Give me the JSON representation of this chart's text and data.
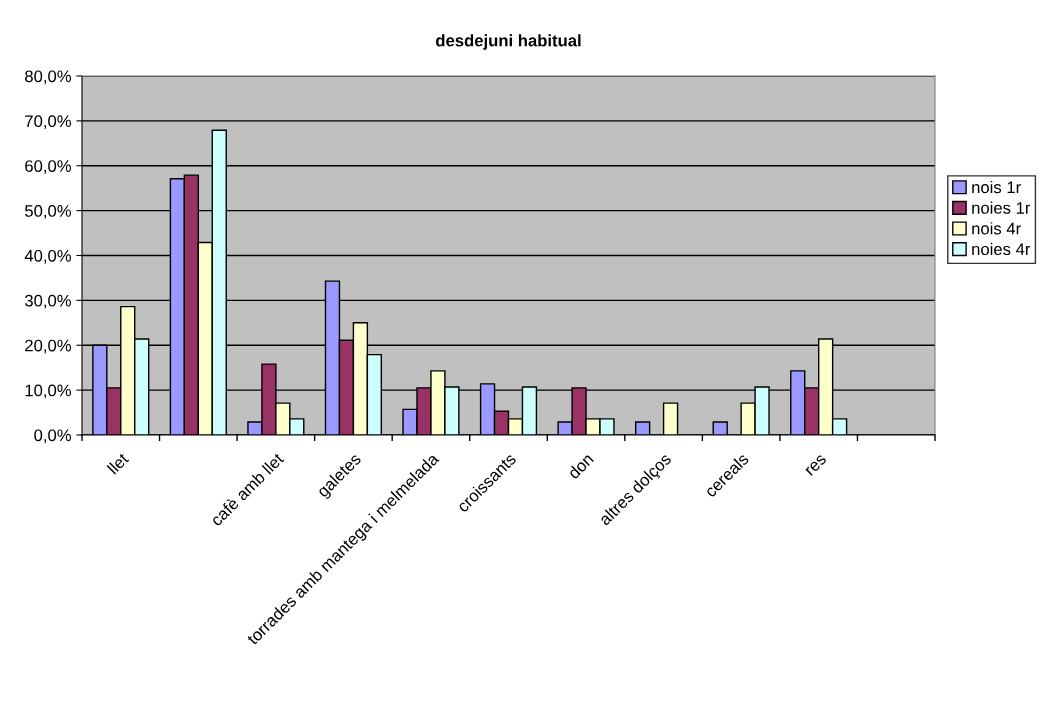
{
  "chart_data": {
    "type": "bar",
    "title": "desdejuni habitual",
    "categories": [
      "llet",
      null,
      "cafè amb llet",
      "galetes",
      "torrades amb mantega i melmelada",
      "croissants",
      "don",
      "altres dolços",
      "cereals",
      "res",
      null
    ],
    "series": [
      {
        "name": "nois 1r",
        "color": "#9999ff",
        "values": [
          20.0,
          57.1,
          2.9,
          34.3,
          5.7,
          11.4,
          2.9,
          2.9,
          2.9,
          14.3,
          null
        ]
      },
      {
        "name": "noies 1r",
        "color": "#993366",
        "values": [
          10.5,
          57.9,
          15.8,
          21.1,
          10.5,
          5.3,
          10.5,
          0,
          0,
          10.5,
          null
        ]
      },
      {
        "name": "nois 4r",
        "color": "#ffffcc",
        "values": [
          28.6,
          42.9,
          7.1,
          25.0,
          14.3,
          3.6,
          3.6,
          7.1,
          7.1,
          21.4,
          null
        ]
      },
      {
        "name": "noies 4r",
        "color": "#ccffff",
        "values": [
          21.4,
          67.9,
          3.6,
          17.9,
          10.7,
          10.7,
          3.6,
          0,
          10.7,
          3.6,
          null
        ]
      }
    ],
    "ylim": [
      0,
      80
    ],
    "yticks": [
      {
        "value": 0,
        "label": "0,0%"
      },
      {
        "value": 10,
        "label": "10,0%"
      },
      {
        "value": 20,
        "label": "20,0%"
      },
      {
        "value": 30,
        "label": "30,0%"
      },
      {
        "value": 40,
        "label": "40,0%"
      },
      {
        "value": 50,
        "label": "50,0%"
      },
      {
        "value": 60,
        "label": "60,0%"
      },
      {
        "value": 70,
        "label": "70,0%"
      },
      {
        "value": 80,
        "label": "80,0%"
      }
    ],
    "grid": "y",
    "legend": "right"
  }
}
